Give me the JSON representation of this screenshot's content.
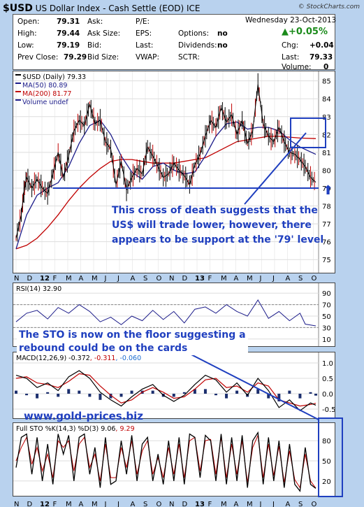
{
  "header": {
    "symbol": "$USD",
    "name": "US Dollar Index - Cash Settle (EOD) ICE",
    "brand": "© StockCharts.com",
    "date": "Wednesday 23-Oct-2013",
    "change_pct": "+0.05%",
    "change_pct_color": "#1a8a1a"
  },
  "quote": {
    "open_label": "Open:",
    "open": "79.31",
    "high_label": "High:",
    "high": "79.44",
    "low_label": "Low:",
    "low": "79.19",
    "prev_label": "Prev Close:",
    "prev": "79.29",
    "ask_label": "Ask:",
    "ask_size_label": "Ask Size:",
    "bid_label": "Bid:",
    "bid_size_label": "Bid Size:",
    "pe_label": "P/E:",
    "eps_label": "EPS:",
    "last_label": "Last:",
    "vwap_label": "VWAP:",
    "options_label": "Options:",
    "options": "no",
    "dividends_label": "Dividends:",
    "dividends": "no",
    "sctr_label": "SCTR:",
    "chg_label": "Chg:",
    "chg": "+0.04",
    "last2_label": "Last:",
    "last": "79.33",
    "volume_label": "Volume:",
    "volume": "0"
  },
  "annotations": {
    "main": [
      "This cross of death suggests that the",
      "US$ will trade lower, however, there",
      "appears to be support at the '79' level"
    ],
    "sto": [
      "The STO is now on the floor suggesting a",
      "rebound could be on the cards"
    ],
    "site": "www.gold-prices.biz",
    "color": "#1f3fbf"
  },
  "chart_data": [
    {
      "type": "line",
      "panel": "price",
      "legend": [
        "$USD (Daily) 79.33",
        "MA(50) 80.89",
        "MA(200) 81.77",
        "Volume undef"
      ],
      "colors": {
        "price": "#000000",
        "ma50": "#1c1c8a",
        "ma200": "#c00000"
      },
      "ylim": [
        74.5,
        85.3
      ],
      "yticks": [
        75,
        76,
        77,
        78,
        79,
        80,
        81,
        82,
        83,
        84,
        85
      ],
      "x_labels": [
        "N",
        "D",
        "12",
        "F",
        "M",
        "A",
        "M",
        "J",
        "J",
        "A",
        "S",
        "O",
        "N",
        "D",
        "13",
        "F",
        "M",
        "A",
        "M",
        "J",
        "J",
        "A",
        "S",
        "O"
      ],
      "x_range": [
        "Nov 2011",
        "Oct 2013"
      ],
      "support_level": 79,
      "price": [
        [
          0,
          76.2
        ],
        [
          1,
          77.5
        ],
        [
          1.5,
          78.8
        ],
        [
          2,
          79.6
        ],
        [
          3,
          79.0
        ],
        [
          4,
          79.5
        ],
        [
          5,
          79.0
        ],
        [
          6,
          78.7
        ],
        [
          7,
          79.8
        ],
        [
          8,
          81.0
        ],
        [
          9,
          79.6
        ],
        [
          10,
          80.8
        ],
        [
          11,
          82.2
        ],
        [
          12,
          82.8
        ],
        [
          13,
          82.5
        ],
        [
          14,
          83.7
        ],
        [
          15,
          82.6
        ],
        [
          16,
          82.8
        ],
        [
          17,
          81.6
        ],
        [
          18,
          81.2
        ],
        [
          19,
          79.2
        ],
        [
          20,
          80.5
        ],
        [
          21,
          78.9
        ],
        [
          22,
          79.6
        ],
        [
          23,
          80.1
        ],
        [
          24,
          79.8
        ],
        [
          25,
          81.3
        ],
        [
          26,
          80.8
        ],
        [
          27,
          80.2
        ],
        [
          28,
          79.6
        ],
        [
          29,
          79.8
        ],
        [
          30,
          80.4
        ],
        [
          31,
          80.0
        ],
        [
          32,
          79.7
        ],
        [
          33,
          79.2
        ],
        [
          34,
          80.3
        ],
        [
          35,
          80.9
        ],
        [
          36,
          81.9
        ],
        [
          37,
          82.8
        ],
        [
          38,
          82.4
        ],
        [
          39,
          83.5
        ],
        [
          40,
          82.7
        ],
        [
          41,
          83.1
        ],
        [
          42,
          82.0
        ],
        [
          43,
          82.8
        ],
        [
          44,
          81.5
        ],
        [
          45,
          82.2
        ],
        [
          46,
          84.8
        ],
        [
          47,
          82.6
        ],
        [
          48,
          81.9
        ],
        [
          49,
          81.6
        ],
        [
          50,
          82.4
        ],
        [
          51,
          81.6
        ],
        [
          52,
          81.0
        ],
        [
          53,
          80.9
        ],
        [
          54,
          80.6
        ],
        [
          55,
          80.2
        ],
        [
          56,
          79.6
        ],
        [
          57,
          79.33
        ]
      ],
      "ma50": [
        [
          0,
          75.6
        ],
        [
          2,
          77.5
        ],
        [
          4,
          78.6
        ],
        [
          6,
          79.0
        ],
        [
          8,
          79.3
        ],
        [
          10,
          80.2
        ],
        [
          12,
          81.5
        ],
        [
          14,
          82.5
        ],
        [
          16,
          82.8
        ],
        [
          18,
          82.0
        ],
        [
          20,
          80.8
        ],
        [
          22,
          79.9
        ],
        [
          24,
          79.5
        ],
        [
          26,
          80.2
        ],
        [
          28,
          80.4
        ],
        [
          30,
          80.0
        ],
        [
          32,
          79.8
        ],
        [
          34,
          79.9
        ],
        [
          36,
          80.8
        ],
        [
          38,
          81.9
        ],
        [
          40,
          82.6
        ],
        [
          42,
          82.7
        ],
        [
          44,
          82.3
        ],
        [
          46,
          82.4
        ],
        [
          48,
          82.4
        ],
        [
          50,
          82.2
        ],
        [
          52,
          81.7
        ],
        [
          54,
          81.3
        ],
        [
          57,
          80.89
        ]
      ],
      "ma200": [
        [
          0,
          75.6
        ],
        [
          2,
          75.8
        ],
        [
          4,
          76.2
        ],
        [
          6,
          76.8
        ],
        [
          8,
          77.5
        ],
        [
          10,
          78.3
        ],
        [
          12,
          79.0
        ],
        [
          14,
          79.6
        ],
        [
          16,
          80.1
        ],
        [
          18,
          80.5
        ],
        [
          20,
          80.6
        ],
        [
          22,
          80.6
        ],
        [
          24,
          80.5
        ],
        [
          26,
          80.4
        ],
        [
          28,
          80.4
        ],
        [
          30,
          80.4
        ],
        [
          32,
          80.5
        ],
        [
          34,
          80.6
        ],
        [
          36,
          80.7
        ],
        [
          38,
          81.0
        ],
        [
          40,
          81.3
        ],
        [
          42,
          81.6
        ],
        [
          44,
          81.7
        ],
        [
          46,
          81.8
        ],
        [
          48,
          81.9
        ],
        [
          50,
          81.9
        ],
        [
          54,
          81.8
        ],
        [
          57,
          81.77
        ]
      ]
    },
    {
      "type": "line",
      "panel": "rsi",
      "legend": "RSI(14) 32.90",
      "ylim": [
        0,
        100
      ],
      "yticks": [
        10,
        30,
        50,
        70,
        90
      ],
      "bands": [
        30,
        70
      ],
      "values": [
        [
          0,
          40
        ],
        [
          2,
          55
        ],
        [
          4,
          60
        ],
        [
          6,
          45
        ],
        [
          8,
          65
        ],
        [
          10,
          55
        ],
        [
          12,
          70
        ],
        [
          14,
          58
        ],
        [
          16,
          40
        ],
        [
          18,
          48
        ],
        [
          20,
          35
        ],
        [
          22,
          50
        ],
        [
          24,
          42
        ],
        [
          26,
          60
        ],
        [
          28,
          44
        ],
        [
          30,
          58
        ],
        [
          32,
          38
        ],
        [
          34,
          62
        ],
        [
          36,
          66
        ],
        [
          38,
          55
        ],
        [
          40,
          70
        ],
        [
          42,
          58
        ],
        [
          44,
          50
        ],
        [
          46,
          78
        ],
        [
          48,
          46
        ],
        [
          50,
          58
        ],
        [
          52,
          42
        ],
        [
          54,
          55
        ],
        [
          55,
          36
        ],
        [
          57,
          32.9
        ]
      ]
    },
    {
      "type": "line",
      "panel": "macd",
      "legend": [
        "MACD(12,26,9) -0.372",
        "-0.311",
        "-0.060"
      ],
      "ylim": [
        -0.75,
        1.25
      ],
      "yticks": [
        -0.5,
        0.0,
        0.5,
        1.0
      ],
      "macd": [
        [
          0,
          0.6
        ],
        [
          2,
          0.5
        ],
        [
          4,
          0.2
        ],
        [
          6,
          0.35
        ],
        [
          8,
          0.1
        ],
        [
          10,
          0.55
        ],
        [
          12,
          0.75
        ],
        [
          14,
          0.5
        ],
        [
          16,
          0.05
        ],
        [
          18,
          -0.2
        ],
        [
          20,
          -0.4
        ],
        [
          22,
          -0.1
        ],
        [
          24,
          0.15
        ],
        [
          26,
          0.3
        ],
        [
          28,
          -0.05
        ],
        [
          30,
          -0.25
        ],
        [
          32,
          -0.05
        ],
        [
          34,
          0.3
        ],
        [
          36,
          0.6
        ],
        [
          38,
          0.45
        ],
        [
          40,
          0.05
        ],
        [
          42,
          0.35
        ],
        [
          44,
          -0.05
        ],
        [
          46,
          0.5
        ],
        [
          48,
          0.1
        ],
        [
          50,
          -0.45
        ],
        [
          52,
          -0.2
        ],
        [
          54,
          -0.55
        ],
        [
          56,
          -0.3
        ],
        [
          57,
          -0.372
        ]
      ],
      "signal": [
        [
          0,
          0.5
        ],
        [
          2,
          0.55
        ],
        [
          4,
          0.35
        ],
        [
          6,
          0.3
        ],
        [
          8,
          0.2
        ],
        [
          10,
          0.4
        ],
        [
          12,
          0.65
        ],
        [
          14,
          0.6
        ],
        [
          16,
          0.25
        ],
        [
          18,
          -0.05
        ],
        [
          20,
          -0.3
        ],
        [
          22,
          -0.2
        ],
        [
          24,
          0.05
        ],
        [
          26,
          0.2
        ],
        [
          28,
          0.05
        ],
        [
          30,
          -0.15
        ],
        [
          32,
          -0.1
        ],
        [
          34,
          0.15
        ],
        [
          36,
          0.45
        ],
        [
          38,
          0.5
        ],
        [
          40,
          0.2
        ],
        [
          42,
          0.25
        ],
        [
          44,
          0.05
        ],
        [
          46,
          0.35
        ],
        [
          48,
          0.25
        ],
        [
          50,
          -0.2
        ],
        [
          52,
          -0.3
        ],
        [
          54,
          -0.4
        ],
        [
          56,
          -0.35
        ],
        [
          57,
          -0.311
        ]
      ],
      "histogram_last": -0.06
    },
    {
      "type": "line",
      "panel": "stochastic",
      "legend": [
        "Full STO %K(14,3) %D(3) 9.06",
        "9.29"
      ],
      "ylim": [
        0,
        100
      ],
      "yticks": [
        20,
        50,
        80
      ],
      "k": [
        [
          0,
          40
        ],
        [
          1,
          85
        ],
        [
          2,
          90
        ],
        [
          3,
          30
        ],
        [
          4,
          85
        ],
        [
          5,
          20
        ],
        [
          6,
          75
        ],
        [
          7,
          15
        ],
        [
          8,
          90
        ],
        [
          9,
          60
        ],
        [
          10,
          88
        ],
        [
          11,
          20
        ],
        [
          12,
          85
        ],
        [
          13,
          90
        ],
        [
          14,
          30
        ],
        [
          15,
          70
        ],
        [
          16,
          10
        ],
        [
          17,
          85
        ],
        [
          18,
          15
        ],
        [
          19,
          20
        ],
        [
          20,
          80
        ],
        [
          21,
          30
        ],
        [
          22,
          88
        ],
        [
          23,
          20
        ],
        [
          24,
          75
        ],
        [
          25,
          85
        ],
        [
          26,
          20
        ],
        [
          27,
          60
        ],
        [
          28,
          15
        ],
        [
          29,
          80
        ],
        [
          30,
          20
        ],
        [
          31,
          85
        ],
        [
          32,
          15
        ],
        [
          33,
          90
        ],
        [
          34,
          85
        ],
        [
          35,
          25
        ],
        [
          36,
          88
        ],
        [
          37,
          80
        ],
        [
          38,
          20
        ],
        [
          39,
          90
        ],
        [
          40,
          15
        ],
        [
          41,
          85
        ],
        [
          42,
          20
        ],
        [
          43,
          88
        ],
        [
          44,
          10
        ],
        [
          45,
          80
        ],
        [
          46,
          92
        ],
        [
          47,
          15
        ],
        [
          48,
          85
        ],
        [
          49,
          20
        ],
        [
          50,
          80
        ],
        [
          51,
          10
        ],
        [
          52,
          75
        ],
        [
          53,
          15
        ],
        [
          54,
          5
        ],
        [
          55,
          70
        ],
        [
          56,
          15
        ],
        [
          57,
          9.06
        ]
      ],
      "d": [
        [
          0,
          50
        ],
        [
          1,
          70
        ],
        [
          2,
          85
        ],
        [
          3,
          45
        ],
        [
          4,
          70
        ],
        [
          5,
          35
        ],
        [
          6,
          60
        ],
        [
          7,
          25
        ],
        [
          8,
          80
        ],
        [
          9,
          70
        ],
        [
          10,
          80
        ],
        [
          11,
          35
        ],
        [
          12,
          75
        ],
        [
          13,
          85
        ],
        [
          14,
          40
        ],
        [
          15,
          60
        ],
        [
          16,
          20
        ],
        [
          17,
          75
        ],
        [
          18,
          25
        ],
        [
          19,
          25
        ],
        [
          20,
          70
        ],
        [
          21,
          40
        ],
        [
          22,
          80
        ],
        [
          23,
          30
        ],
        [
          24,
          65
        ],
        [
          25,
          80
        ],
        [
          26,
          30
        ],
        [
          27,
          55
        ],
        [
          28,
          25
        ],
        [
          29,
          70
        ],
        [
          30,
          30
        ],
        [
          31,
          75
        ],
        [
          32,
          25
        ],
        [
          33,
          80
        ],
        [
          34,
          85
        ],
        [
          35,
          35
        ],
        [
          36,
          80
        ],
        [
          37,
          82
        ],
        [
          38,
          30
        ],
        [
          39,
          85
        ],
        [
          40,
          25
        ],
        [
          41,
          75
        ],
        [
          42,
          30
        ],
        [
          43,
          80
        ],
        [
          44,
          18
        ],
        [
          45,
          70
        ],
        [
          46,
          88
        ],
        [
          47,
          25
        ],
        [
          48,
          75
        ],
        [
          49,
          28
        ],
        [
          50,
          72
        ],
        [
          51,
          18
        ],
        [
          52,
          65
        ],
        [
          53,
          22
        ],
        [
          54,
          10
        ],
        [
          55,
          60
        ],
        [
          56,
          20
        ],
        [
          57,
          9.29
        ]
      ]
    }
  ]
}
